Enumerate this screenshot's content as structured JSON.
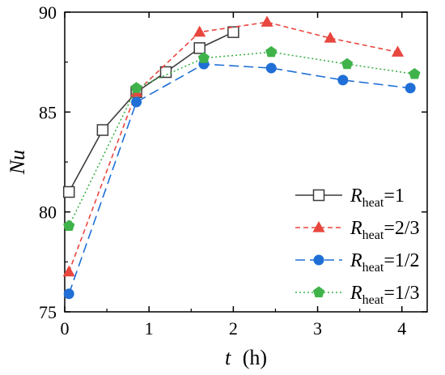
{
  "chart_data": {
    "type": "line",
    "xlabel_var": "t",
    "xlabel_unit": "(h)",
    "ylabel": "Nu",
    "xlim": [
      0,
      4.3
    ],
    "ylim": [
      75,
      90
    ],
    "xticks": [
      0,
      1,
      2,
      3,
      4
    ],
    "yticks": [
      75,
      80,
      85,
      90
    ],
    "grid": false,
    "legend_position": "bottom-right",
    "series": [
      {
        "name": "Rheat=1",
        "name_var": "R",
        "name_sub": "heat",
        "name_val": "=1",
        "color": "#3a3a3a",
        "dash": "solid",
        "marker": "open-square",
        "x": [
          0.05,
          0.45,
          0.85,
          1.2,
          1.6,
          2.0
        ],
        "y": [
          81.0,
          84.1,
          86.0,
          87.0,
          88.2,
          89.0
        ]
      },
      {
        "name": "Rheat=2/3",
        "name_var": "R",
        "name_sub": "heat",
        "name_val": "=2/3",
        "color": "#e8473f",
        "dash": "short-dash",
        "marker": "filled-triangle",
        "x": [
          0.05,
          0.85,
          1.6,
          2.4,
          3.15,
          3.95
        ],
        "y": [
          77.0,
          86.0,
          89.0,
          89.5,
          88.7,
          88.0
        ]
      },
      {
        "name": "Rheat=1/2",
        "name_var": "R",
        "name_sub": "heat",
        "name_val": "=1/2",
        "color": "#1f6fd6",
        "dash": "long-dash",
        "marker": "filled-circle",
        "x": [
          0.05,
          0.85,
          1.65,
          2.45,
          3.3,
          4.1
        ],
        "y": [
          75.9,
          85.5,
          87.4,
          87.2,
          86.6,
          86.2
        ]
      },
      {
        "name": "Rheat=1/3",
        "name_var": "R",
        "name_sub": "heat",
        "name_val": "=1/3",
        "color": "#3fb34a",
        "dash": "dotted",
        "marker": "filled-pentagon",
        "x": [
          0.05,
          0.85,
          1.65,
          2.45,
          3.35,
          4.15
        ],
        "y": [
          79.3,
          86.2,
          87.7,
          88.0,
          87.4,
          86.9
        ]
      }
    ]
  }
}
